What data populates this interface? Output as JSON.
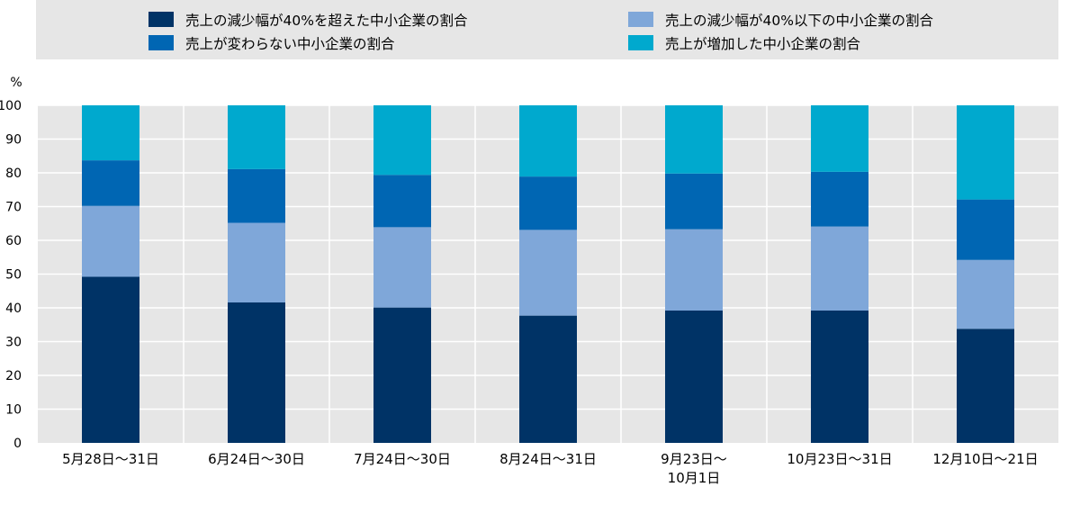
{
  "chart_data": {
    "type": "bar",
    "stacked": true,
    "ylabel": "%",
    "ylim": [
      0,
      100
    ],
    "yticks": [
      0,
      10,
      20,
      30,
      40,
      50,
      60,
      70,
      80,
      90,
      100
    ],
    "grid": true,
    "legend_position": "top",
    "categories": [
      [
        "5月28日～31日"
      ],
      [
        "6月24日～30日"
      ],
      [
        "7月24日～30日"
      ],
      [
        "8月24日～31日"
      ],
      [
        "9月23日～",
        "10月1日"
      ],
      [
        "10月23日～31日"
      ],
      [
        "12月10日～21日"
      ]
    ],
    "series": [
      {
        "name": "売上の減少幅が40%を超えた中小企業の割合",
        "color": "#003366",
        "values": [
          49.2,
          41.6,
          40.1,
          37.7,
          39.2,
          39.2,
          33.8
        ]
      },
      {
        "name": "売上の減少幅が40%以下の中小企業の割合",
        "color": "#7FA7D9",
        "values": [
          21.0,
          23.6,
          23.8,
          25.4,
          24.1,
          24.9,
          20.4
        ]
      },
      {
        "name": "売上が変わらない中小企業の割合",
        "color": "#0066B3",
        "values": [
          13.5,
          15.9,
          15.5,
          15.8,
          16.5,
          16.2,
          17.9
        ]
      },
      {
        "name": "売上が増加した中小企業の割合",
        "color": "#00A9CE",
        "values": [
          16.3,
          18.9,
          20.6,
          21.1,
          20.2,
          19.7,
          27.9
        ]
      }
    ],
    "legend_order": [
      0,
      1,
      2,
      3
    ],
    "colors": {
      "plot_background": "#E6E6E6",
      "legend_background": "#E6E6E6",
      "grid": "#FFFFFF"
    }
  }
}
